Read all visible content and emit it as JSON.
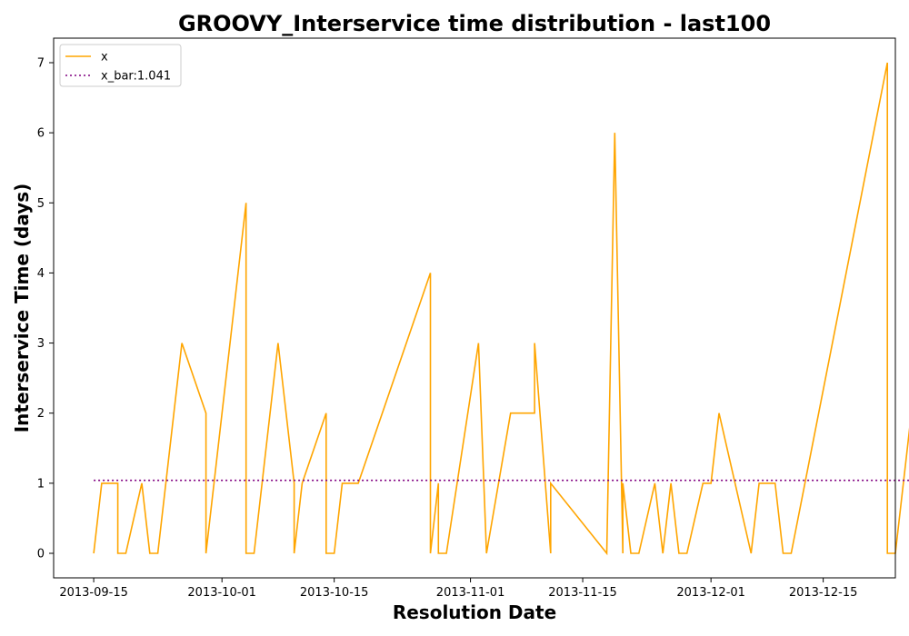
{
  "chart_data": {
    "type": "line",
    "title": "GROOVY_Interservice time distribution - last100",
    "xlabel": "Resolution Date",
    "ylabel": "Interservice Time (days)",
    "x_ticks": [
      "2013-09-15",
      "2013-10-01",
      "2013-10-15",
      "2013-11-01",
      "2013-11-15",
      "2013-12-01",
      "2013-12-15"
    ],
    "y_ticks": [
      0,
      1,
      2,
      3,
      4,
      5,
      6,
      7
    ],
    "xlim": [
      "2013-09-10",
      "2013-12-24"
    ],
    "ylim": [
      -0.35,
      7.35
    ],
    "legend_position": "upper left",
    "series": [
      {
        "name": "x",
        "color": "#ffa500",
        "style": "solid",
        "x": [
          "2013-09-15",
          "2013-09-16",
          "2013-09-18",
          "2013-09-18",
          "2013-09-19",
          "2013-09-21",
          "2013-09-22",
          "2013-09-23",
          "2013-09-26",
          "2013-09-29",
          "2013-09-29",
          "2013-10-04",
          "2013-10-04",
          "2013-10-05",
          "2013-10-08",
          "2013-10-10",
          "2013-10-10",
          "2013-10-11",
          "2013-10-14",
          "2013-10-14",
          "2013-10-15",
          "2013-10-16",
          "2013-10-18",
          "2013-10-27",
          "2013-10-27",
          "2013-10-28",
          "2013-10-28",
          "2013-10-29",
          "2013-11-02",
          "2013-11-03",
          "2013-11-06",
          "2013-11-09",
          "2013-11-09",
          "2013-11-11",
          "2013-11-11",
          "2013-11-18",
          "2013-11-19",
          "2013-11-20",
          "2013-11-20",
          "2013-11-21",
          "2013-11-22",
          "2013-11-24",
          "2013-11-25",
          "2013-11-25",
          "2013-11-26",
          "2013-11-27",
          "2013-11-27",
          "2013-11-28",
          "2013-11-30",
          "2013-12-01",
          "2013-12-02",
          "2013-12-06",
          "2013-12-06",
          "2013-12-07",
          "2013-12-09",
          "2013-12-10",
          "2013-12-11",
          "2013-12-11",
          "2013-12-23",
          "2013-12-23",
          "2013-12-24",
          "2013-12-26"
        ],
        "y": [
          0,
          1,
          1,
          0,
          0,
          1,
          0,
          0,
          3,
          2,
          0,
          5,
          0,
          0,
          3,
          1,
          0,
          1,
          2,
          0,
          0,
          1,
          1,
          4,
          0,
          1,
          0,
          0,
          3,
          0,
          2,
          2,
          3,
          0,
          1,
          0,
          6,
          0,
          1,
          0,
          0,
          1,
          0,
          0,
          1,
          0,
          0,
          0,
          1,
          1,
          2,
          0,
          0,
          1,
          1,
          0,
          0,
          0,
          7,
          0,
          0,
          2
        ]
      },
      {
        "name": "x_bar:1.041",
        "color": "#800080",
        "style": "dotted",
        "x": [
          "2013-09-15",
          "2013-12-26"
        ],
        "y": [
          1.041,
          1.041
        ]
      }
    ]
  }
}
